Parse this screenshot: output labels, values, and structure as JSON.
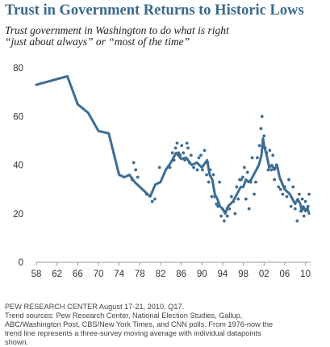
{
  "header": {
    "title": "Trust in Government Returns to Historic Lows",
    "subtitle_line1": "Trust government in Washington to do what is right",
    "subtitle_line2": "“just about always” or “most of the time”"
  },
  "footer": {
    "line1": "PEW RESEARCH CENTER August 17-21, 2010. Q17.",
    "line2": "Trend sources: Pew Research Center, National Election Studies, Gallup,",
    "line3": "ABC/Washington Post, CBS/New York Times, and CNN polls. From 1976-now the",
    "line4": "trend line represents a three-survey moving average with individual datapoints",
    "line5": "shown."
  },
  "colors": {
    "title": "#3a6a8c",
    "line": "#3e6d93",
    "dots": "#3e6d93",
    "axis": "#999999"
  },
  "chart_data": {
    "type": "line",
    "xlim": [
      1958,
      2011
    ],
    "ylim": [
      0,
      80
    ],
    "xtick_values": [
      1958,
      1962,
      1966,
      1970,
      1974,
      1978,
      1982,
      1986,
      1990,
      1994,
      1998,
      2002,
      2006,
      2010
    ],
    "xtick_labels": [
      "58",
      "62",
      "66",
      "70",
      "74",
      "78",
      "82",
      "86",
      "90",
      "94",
      "98",
      "02",
      "06",
      "10"
    ],
    "ytick_values": [
      0,
      20,
      40,
      60,
      80
    ],
    "ytick_labels": [
      "0",
      "20",
      "40",
      "60",
      "80"
    ],
    "grid": false,
    "series": [
      {
        "type": "line",
        "x": [
          1958,
          1964,
          1966,
          1968,
          1970,
          1972,
          1974,
          1975,
          1976,
          1977,
          1978,
          1979,
          1980,
          1981,
          1982,
          1983,
          1984,
          1985,
          1986,
          1987,
          1988,
          1989,
          1990,
          1991,
          1991.5,
          1992,
          1992.5,
          1993,
          1993.5,
          1994,
          1994.5,
          1995,
          1996,
          1997,
          1997.5,
          1998,
          1998.5,
          1999,
          1999.5,
          2000,
          2001,
          2001.5,
          2001.8,
          2002,
          2002.5,
          2003,
          2003.5,
          2004,
          2004.5,
          2005,
          2006,
          2006.5,
          2007,
          2007.5,
          2008,
          2008.5,
          2009,
          2009.3,
          2009.6,
          2010,
          2010.4,
          2010.7
        ],
        "y": [
          73,
          76.5,
          65,
          61.5,
          54,
          53,
          36,
          35,
          36,
          33,
          31,
          29,
          27,
          32,
          33,
          38,
          41,
          45,
          42.5,
          43,
          40,
          41,
          39,
          42,
          36,
          34,
          28,
          26,
          23,
          22,
          20,
          23,
          25,
          29,
          31,
          31,
          34,
          33,
          34,
          36,
          40,
          44,
          51,
          48,
          44,
          39,
          40,
          38,
          40,
          35,
          30,
          29,
          28,
          26,
          24,
          26,
          24,
          21,
          23,
          21,
          22,
          20
        ]
      },
      {
        "type": "scatter",
        "x": [
          1976.5,
          1976.8,
          1977.2,
          1977.6,
          1979.3,
          1980.4,
          1980.9,
          1981.8,
          1983.8,
          1984.3,
          1984.6,
          1984.9,
          1985.2,
          1985.5,
          1985.8,
          1986.1,
          1986.4,
          1986.7,
          1987.1,
          1987.3,
          1987.6,
          1987.9,
          1988.4,
          1989.1,
          1989.4,
          1989.8,
          1990.1,
          1990.5,
          1990.9,
          1991.1,
          1991.3,
          1991.6,
          1991.9,
          1992.2,
          1992.5,
          1992.8,
          1993.1,
          1993.4,
          1993.7,
          1994.0,
          1994.3,
          1994.6,
          1994.9,
          1995.3,
          1995.7,
          1996.1,
          1996.4,
          1996.7,
          1997.0,
          1997.3,
          1997.6,
          1997.9,
          1998.2,
          1998.5,
          1998.8,
          1999.1,
          1999.4,
          1999.7,
          2000.1,
          2000.4,
          2000.7,
          2001.1,
          2001.4,
          2001.6,
          2001.8,
          2002.0,
          2002.2,
          2002.5,
          2002.8,
          2003.1,
          2003.4,
          2003.7,
          2004.0,
          2004.4,
          2004.8,
          2005.2,
          2005.6,
          2006.0,
          2006.4,
          2006.8,
          2007.2,
          2007.6,
          2008.0,
          2008.4,
          2008.8,
          2009.1,
          2009.4,
          2009.7,
          2010.0,
          2010.3,
          2010.5,
          2010.7
        ],
        "y": [
          34,
          41,
          38,
          35,
          28,
          25,
          26,
          39,
          39,
          45,
          42,
          47,
          49,
          45,
          44,
          48,
          45,
          42,
          49,
          47,
          41,
          44,
          39,
          38,
          43,
          44,
          38,
          46,
          36,
          41,
          33,
          38,
          27,
          36,
          27,
          24,
          23,
          33,
          19,
          22,
          17,
          21,
          19,
          22,
          27,
          25,
          20,
          31,
          26,
          34,
          34,
          35,
          39,
          26,
          37,
          22,
          33,
          43,
          28,
          33,
          43,
          48,
          55,
          60,
          48,
          52,
          47,
          45,
          38,
          46,
          38,
          44,
          34,
          40,
          31,
          30,
          28,
          31,
          27,
          34,
          23,
          31,
          22,
          17,
          28,
          21,
          26,
          19,
          25,
          22,
          23,
          28
        ]
      }
    ]
  }
}
